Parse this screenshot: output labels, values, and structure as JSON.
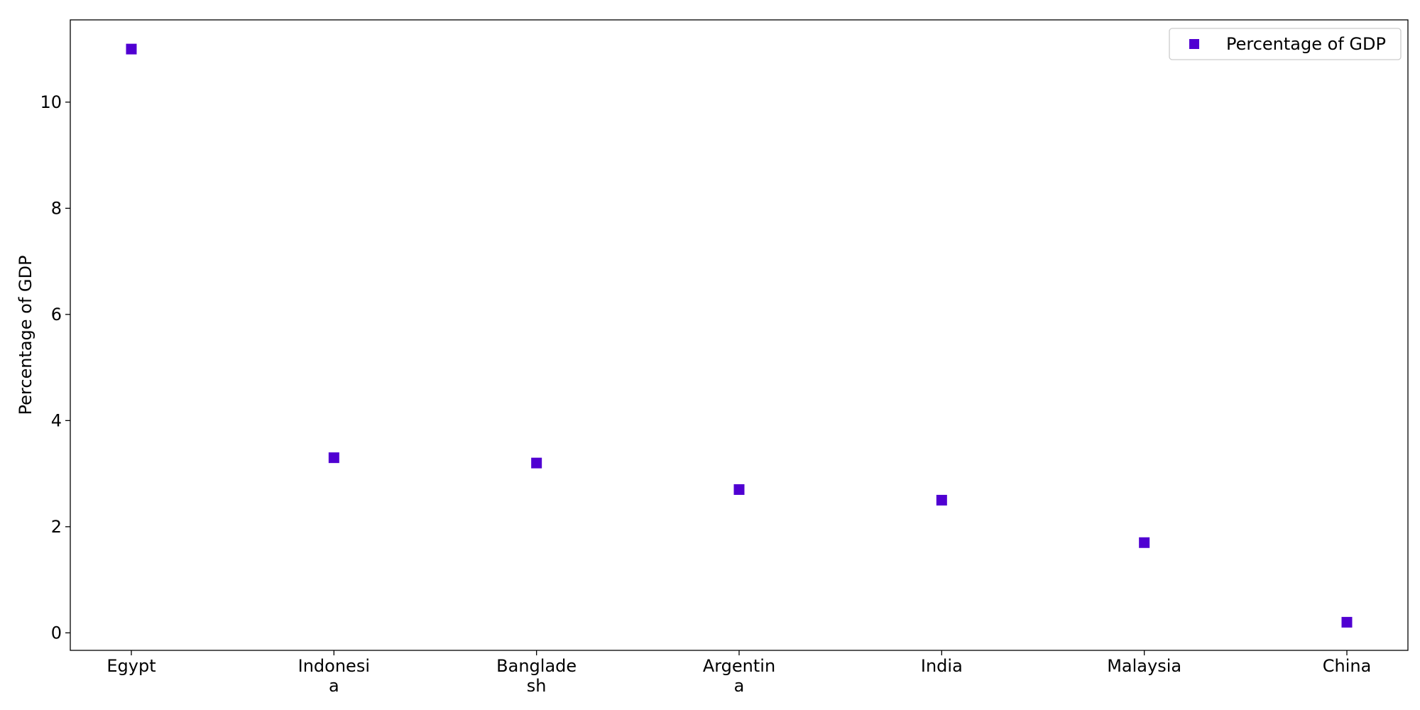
{
  "chart_data": {
    "type": "scatter",
    "categories": [
      [
        "Egypt"
      ],
      [
        "Indonesi",
        "a"
      ],
      [
        "Banglade",
        "sh"
      ],
      [
        "Argentin",
        "a"
      ],
      [
        "India"
      ],
      [
        "Malaysia"
      ],
      [
        "China"
      ]
    ],
    "series": [
      {
        "name": "Percentage of GDP",
        "values": [
          11.0,
          3.3,
          3.2,
          2.7,
          2.5,
          1.7,
          0.2
        ],
        "color": "#5000d2",
        "marker": "square"
      }
    ],
    "ylabel": "Percentage of GDP",
    "xlabel": "",
    "ylim": [
      -0.33,
      11.55
    ],
    "yticks": [
      0,
      2,
      4,
      6,
      8,
      10
    ],
    "grid": false,
    "legend": {
      "position": "top-right",
      "entries": [
        "Percentage of GDP"
      ]
    }
  }
}
